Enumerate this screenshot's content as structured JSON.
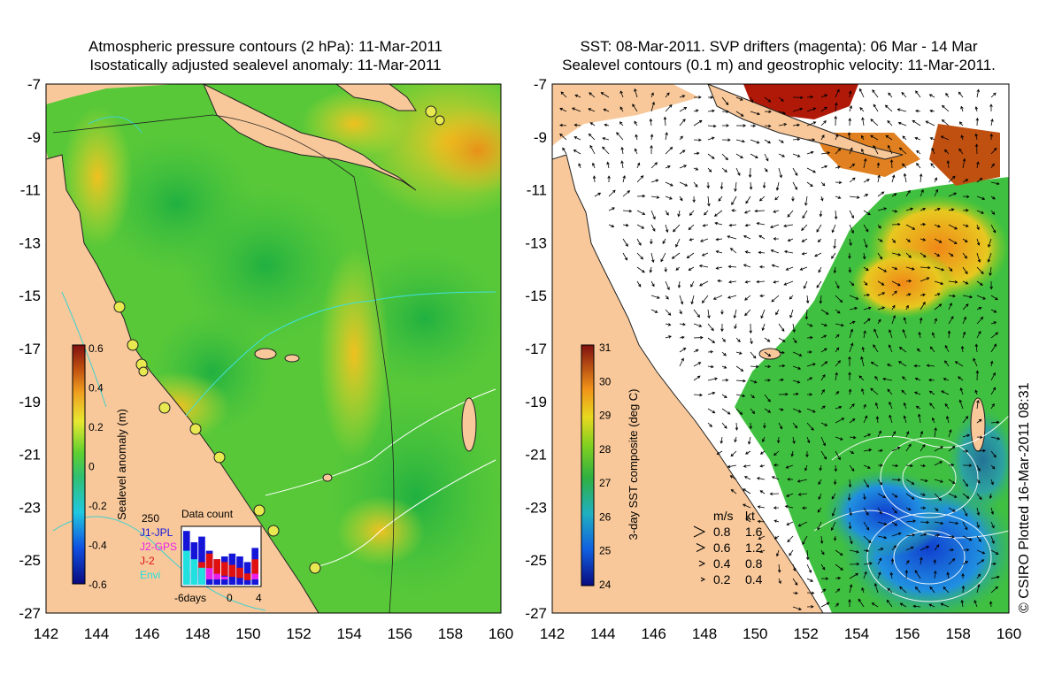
{
  "left_panel": {
    "title_line1": "Atmospheric pressure contours (2 hPa): 11-Mar-2011",
    "title_line2": "Isostatically adjusted sealevel anomaly: 11-Mar-2011",
    "lat_labels": [
      "-7",
      "-9",
      "-11",
      "-13",
      "-15",
      "-17",
      "-19",
      "-21",
      "-23",
      "-25",
      "-27"
    ],
    "lon_labels": [
      "142",
      "144",
      "146",
      "148",
      "150",
      "152",
      "154",
      "156",
      "158",
      "160"
    ],
    "colorbar": {
      "label": "Sealevel anomaly (m)",
      "ticks": [
        "0.6",
        "0.4",
        "0.2",
        "0",
        "-0.2",
        "-0.4",
        "-0.6"
      ]
    },
    "data_count": {
      "title": "Data count",
      "max_label": "250",
      "legend": [
        "J1-JPL",
        "J2-GPS",
        "J-2",
        "Envi"
      ],
      "legend_colors": [
        "#1515d8",
        "#e820e8",
        "#e01010",
        "#20e0e0"
      ],
      "axis_labels": [
        "-6days",
        "0",
        "4"
      ],
      "bars": [
        {
          "J1": 0.95,
          "J2": 0.2,
          "J2b": 0.0,
          "Envi": 0.6
        },
        {
          "J1": 0.75,
          "J2": 0.35,
          "J2b": 0.1,
          "Envi": 0.45
        },
        {
          "J1": 0.85,
          "J2": 0.4,
          "J2b": 0.15,
          "Envi": 0.3
        },
        {
          "J1": 0.6,
          "J2": 0.55,
          "J2b": 0.2,
          "Envi": 0.0
        },
        {
          "J1": 0.45,
          "J2": 0.45,
          "J2b": 0.1,
          "Envi": 0.0
        },
        {
          "J1": 0.5,
          "J2": 0.4,
          "J2b": 0.05,
          "Envi": 0.0
        },
        {
          "J1": 0.55,
          "J2": 0.35,
          "J2b": 0.0,
          "Envi": 0.0
        },
        {
          "J1": 0.5,
          "J2": 0.3,
          "J2b": 0.0,
          "Envi": 0.0
        },
        {
          "J1": 0.4,
          "J2": 0.2,
          "J2b": 0.0,
          "Envi": 0.0
        },
        {
          "J1": 0.65,
          "J2": 0.45,
          "J2b": 0.1,
          "Envi": 0.0
        }
      ]
    }
  },
  "right_panel": {
    "title_line1": "SST: 08-Mar-2011. SVP drifters (magenta): 06 Mar - 14 Mar",
    "title_line2": "Sealevel contours (0.1 m) and geostrophic velocity: 11-Mar-2011.",
    "lat_labels": [
      "-7",
      "-9",
      "-11",
      "-13",
      "-15",
      "-17",
      "-19",
      "-21",
      "-23",
      "-25",
      "-27"
    ],
    "lon_labels": [
      "142",
      "144",
      "146",
      "148",
      "150",
      "152",
      "154",
      "156",
      "158",
      "160"
    ],
    "colorbar": {
      "label": "3-day SST composite (deg C)",
      "ticks": [
        "31",
        "30",
        "29",
        "28",
        "27",
        "26",
        "25",
        "24"
      ]
    },
    "velocity_legend": {
      "header_ms": "m/s",
      "header_kt": "kt",
      "rows": [
        {
          "ms": "0.8",
          "kt": "1.6"
        },
        {
          "ms": "0.6",
          "kt": "1.2"
        },
        {
          "ms": "0.4",
          "kt": "0.8"
        },
        {
          "ms": "0.2",
          "kt": "0.4"
        }
      ]
    }
  },
  "credit": "© CSIRO Plotted 16-Mar-2011 08:31",
  "colors": {
    "land": "#f8c89a",
    "sla_green": "#34c634",
    "sla_yellow": "#e8e830",
    "sla_orange": "#f0a020",
    "sst_red": "#b01808",
    "sst_orange": "#f09018",
    "sst_green": "#40c040",
    "sst_blue": "#2080e0",
    "coast_cyan": "#40e0e0"
  }
}
